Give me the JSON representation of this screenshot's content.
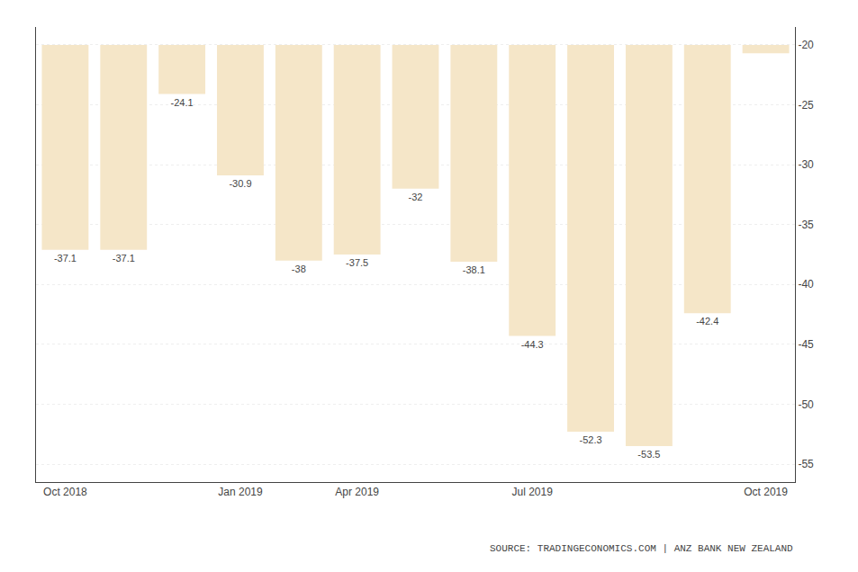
{
  "chart_data": {
    "type": "bar",
    "categories": [
      "Oct 2018",
      null,
      null,
      "Jan 2019",
      null,
      "Apr 2019",
      null,
      null,
      "Jul 2019",
      null,
      null,
      null,
      "Oct 2019"
    ],
    "values": [
      -37.1,
      -37.1,
      -24.1,
      -30.9,
      -38.0,
      -37.5,
      -32.0,
      -38.1,
      -44.3,
      -52.3,
      -53.5,
      -42.4,
      -20.7
    ],
    "value_labels": [
      "-37.1",
      "-37.1",
      "-24.1",
      "-30.9",
      "-38",
      "-37.5",
      "-32",
      "-38.1",
      "-44.3",
      "-52.3",
      "-53.5",
      "-42.4",
      null
    ],
    "base": -20.0,
    "color": "#f5e6c8",
    "data_labels": true,
    "ylim": [
      -56.5,
      -18.5
    ],
    "yticks": [
      -20,
      -25,
      -30,
      -35,
      -40,
      -45,
      -50,
      -55
    ],
    "grid": true,
    "annotations": [
      "SOURCE: TRADINGECONOMICS.COM | ANZ BANK NEW ZEALAND"
    ]
  }
}
